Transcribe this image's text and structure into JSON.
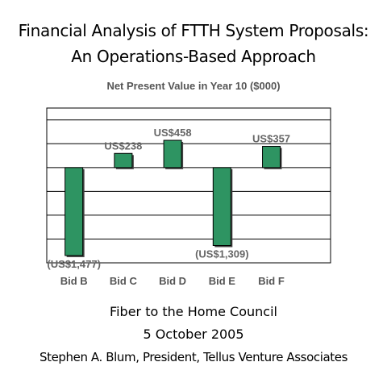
{
  "page": {
    "title_line1": "Financial Analysis of FTTH System Proposals:",
    "title_line2": "An Operations-Based Approach",
    "footer_line1": "Fiber to the Home Council",
    "footer_line2": "5 October 2005",
    "footer_line3": "Stephen A. Blum, President, Tellus Venture Associates"
  },
  "chart_data": {
    "type": "bar",
    "title": "Net Present Value in Year 10 ($000)",
    "categories": [
      "Bid B",
      "Bid C",
      "Bid D",
      "Bid E",
      "Bid F"
    ],
    "values": [
      -1477,
      238,
      458,
      -1309,
      357
    ],
    "data_labels": [
      "(US$1,477)",
      "US$238",
      "US$458",
      "(US$1,309)",
      "US$357"
    ],
    "ylim": [
      -1600,
      1000
    ],
    "grid": true,
    "bar_color": "#2e9462",
    "label_color": "#666666"
  }
}
